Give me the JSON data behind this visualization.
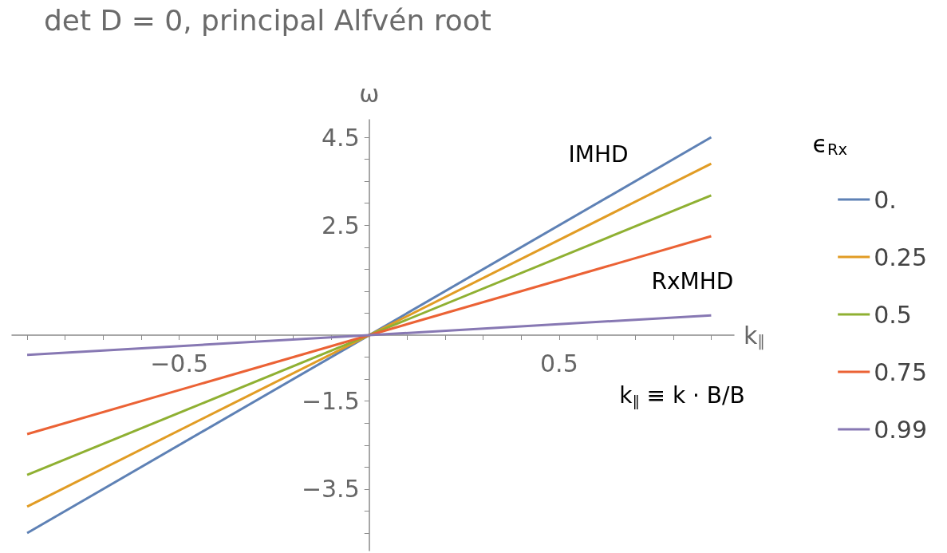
{
  "chart_data": {
    "type": "line",
    "title": "det D = 0, principal Alfvén root",
    "xlabel": "k$_{∥}$",
    "ylabel": "ω",
    "legend_title": "ϵ$_{Rx}$",
    "x": [
      -0.9,
      0.9
    ],
    "series": [
      {
        "name": "0.",
        "color": "#5e81b5",
        "values": [
          -4.5,
          4.5
        ]
      },
      {
        "name": "0.25",
        "color": "#e19c24",
        "values": [
          -3.9,
          3.9
        ]
      },
      {
        "name": "0.5",
        "color": "#8fb032",
        "values": [
          -3.18,
          3.18
        ]
      },
      {
        "name": "0.75",
        "color": "#eb6235",
        "values": [
          -2.25,
          2.25
        ]
      },
      {
        "name": "0.99",
        "color": "#8778b3",
        "values": [
          -0.45,
          0.45
        ]
      }
    ],
    "xlim": [
      -0.94,
      0.96
    ],
    "xticks": [
      {
        "value": -0.9,
        "label": null
      },
      {
        "value": -0.8,
        "label": null
      },
      {
        "value": -0.7,
        "label": null
      },
      {
        "value": -0.6,
        "label": null
      },
      {
        "value": -0.5,
        "label": "−0.5"
      },
      {
        "value": -0.4,
        "label": null
      },
      {
        "value": -0.3,
        "label": null
      },
      {
        "value": -0.2,
        "label": null
      },
      {
        "value": -0.1,
        "label": null
      },
      {
        "value": 0.1,
        "label": null
      },
      {
        "value": 0.2,
        "label": null
      },
      {
        "value": 0.3,
        "label": null
      },
      {
        "value": 0.4,
        "label": null
      },
      0.5,
      {
        "value": 0.6,
        "label": null
      },
      {
        "value": 0.7,
        "label": null
      },
      {
        "value": 0.8,
        "label": null
      },
      {
        "value": 0.9,
        "label": null
      }
    ],
    "ylim": [
      -4.9,
      4.9
    ],
    "yticks": [
      {
        "value": -4.5,
        "label": null
      },
      {
        "value": -4,
        "label": null
      },
      {
        "value": -3.5,
        "label": "−3.5"
      },
      {
        "value": -3,
        "label": null
      },
      {
        "value": -2.5,
        "label": null
      },
      {
        "value": -2,
        "label": null
      },
      {
        "value": -1.5,
        "label": "−1.5"
      },
      {
        "value": -1,
        "label": null
      },
      {
        "value": -0.5,
        "label": null
      },
      {
        "value": 0.5,
        "label": null
      },
      {
        "value": 1,
        "label": null
      },
      {
        "value": 1.5,
        "label": null
      },
      {
        "value": 2,
        "label": null
      },
      2.5,
      {
        "value": 3,
        "label": null
      },
      {
        "value": 3.5,
        "label": null
      },
      {
        "value": 4,
        "label": null
      },
      4.5
    ],
    "annotations": [
      "IMHD",
      "RxMHD",
      "k$_{∥}$ ≡ k · B/B"
    ],
    "grid": false,
    "legend": "right",
    "marker": "none",
    "line_style": "solid"
  }
}
